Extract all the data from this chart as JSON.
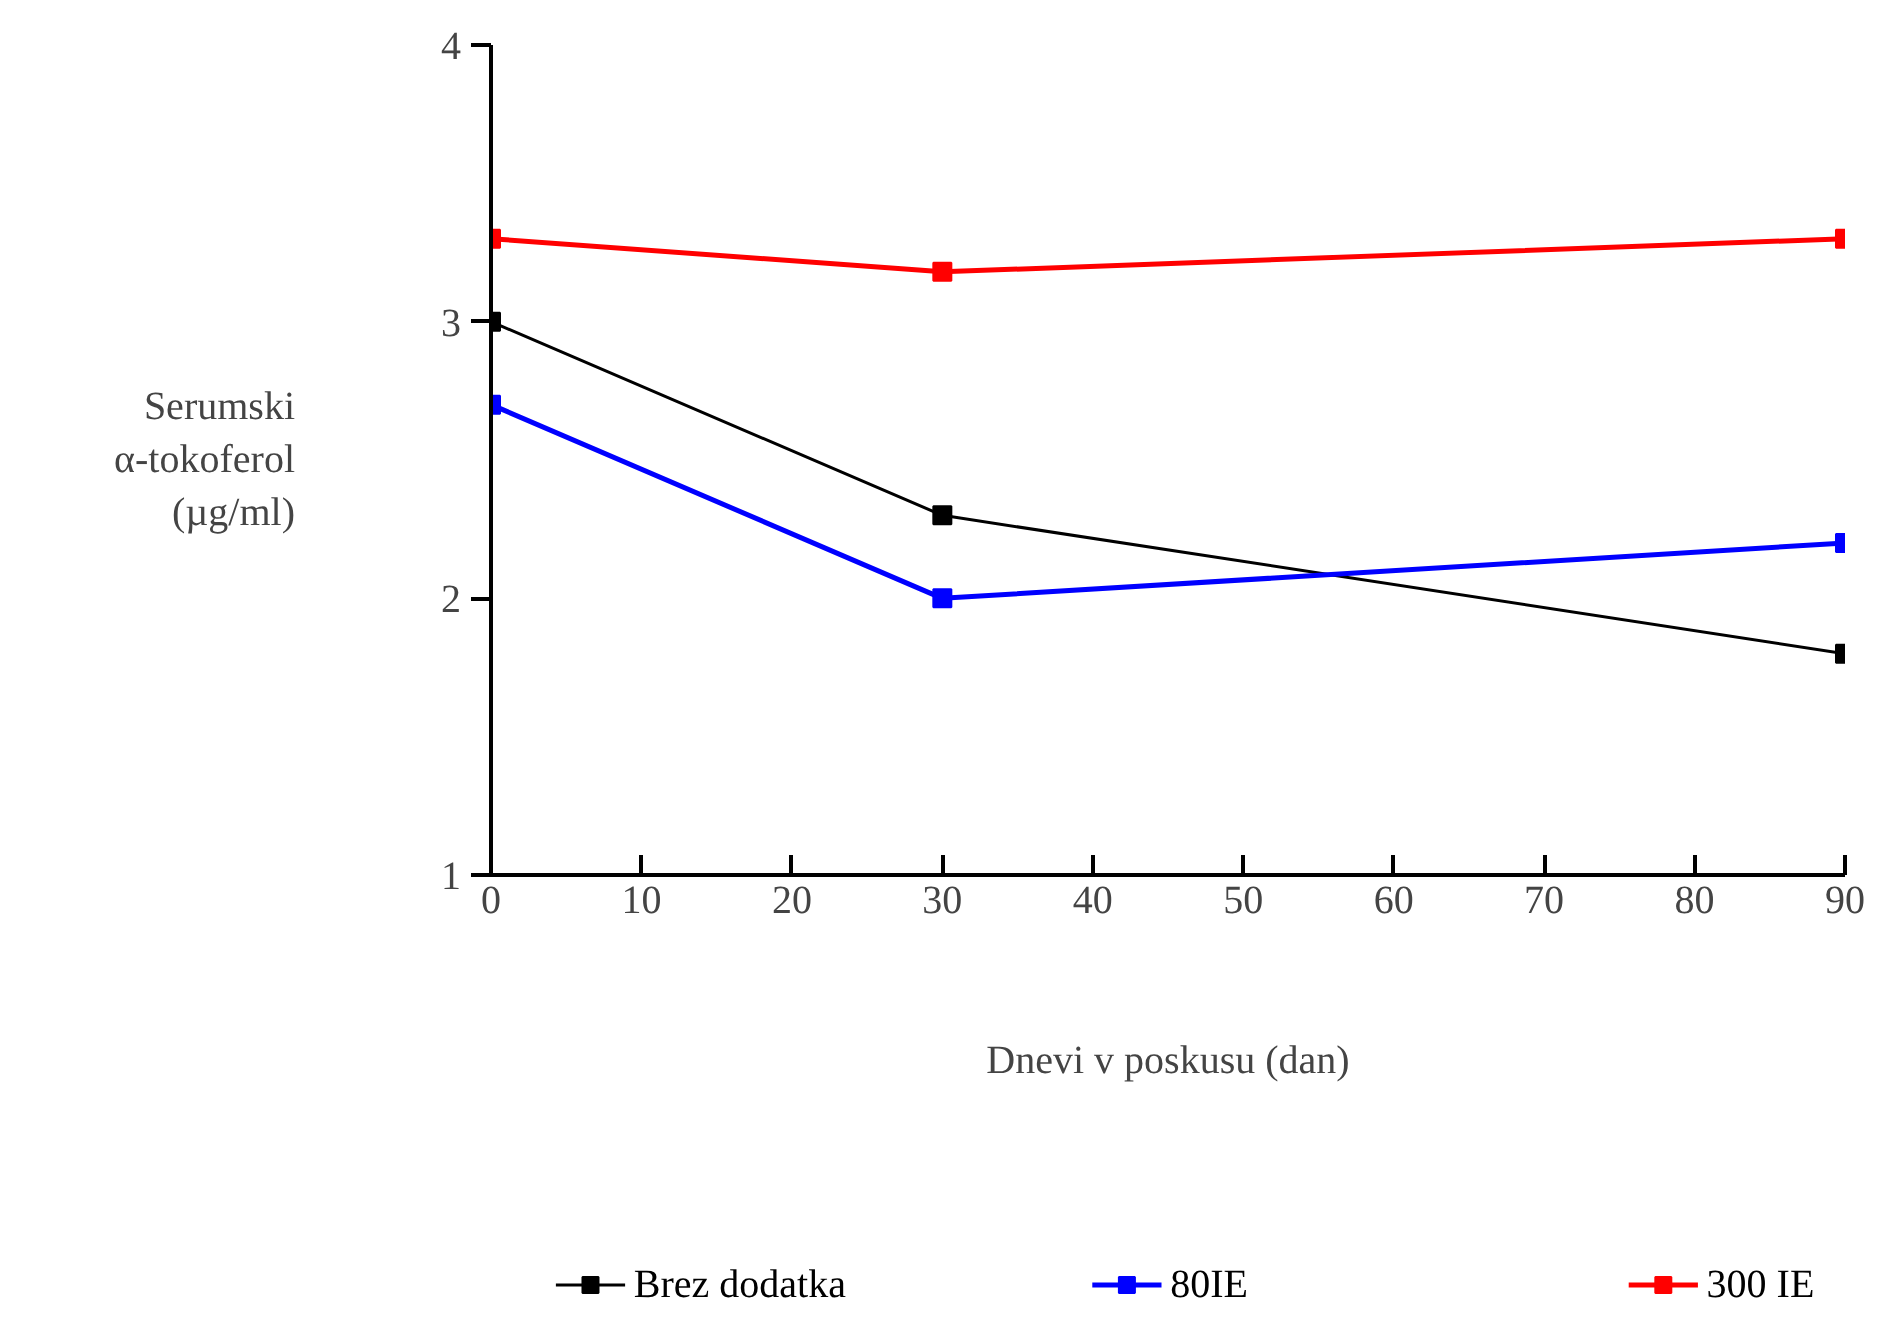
{
  "chart_data": {
    "type": "line",
    "xlabel": "Dnevi v poskusu (dan)",
    "ylabel": "Serumski\nα-tokoferol\n(µg/ml)",
    "x": [
      0,
      30,
      90
    ],
    "series": [
      {
        "name": "Brez dodatka",
        "color": "#000000",
        "values": [
          3.0,
          2.3,
          1.8
        ]
      },
      {
        "name": "80IE",
        "color": "#0000ff",
        "values": [
          2.7,
          2.0,
          2.2
        ]
      },
      {
        "name": "300 IE",
        "color": "#ff0000",
        "values": [
          3.3,
          3.18,
          3.3
        ]
      }
    ],
    "xlim": [
      0,
      90
    ],
    "xticks": [
      0,
      10,
      20,
      30,
      40,
      50,
      60,
      70,
      80,
      90
    ],
    "ylim": [
      1,
      4
    ],
    "yticks": [
      1,
      2,
      3,
      4
    ],
    "grid": false,
    "legend": "bottom",
    "marker": "square",
    "line_style": "solid"
  }
}
